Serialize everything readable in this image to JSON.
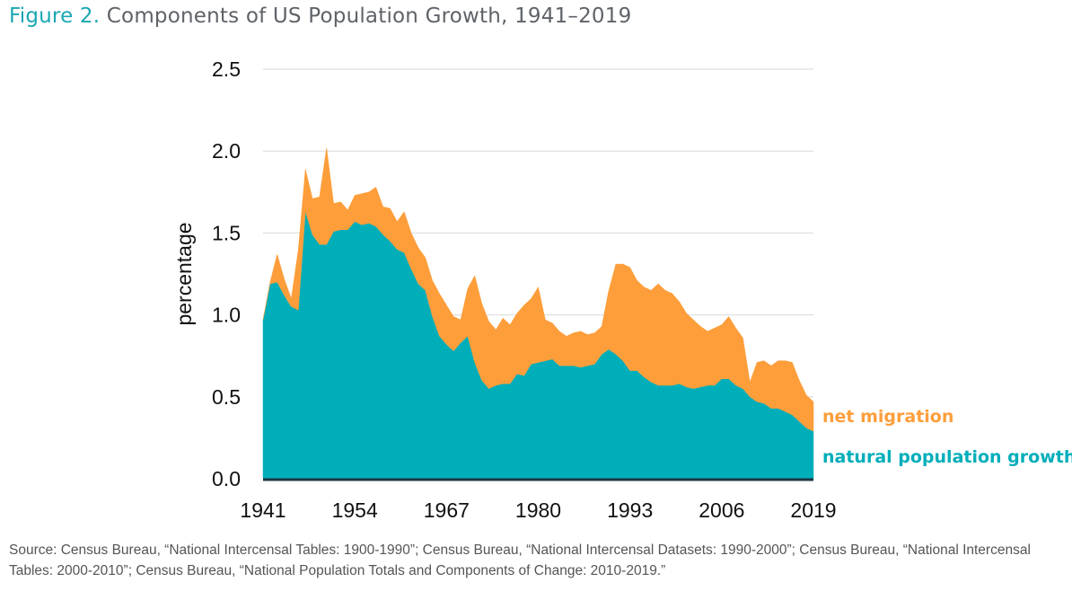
{
  "title": {
    "figure": "Figure 2.",
    "text": "Components of US Population Growth, 1941–2019"
  },
  "source": "Source: Census Bureau, “National Intercensal Tables: 1900-1990”; Census Bureau, “National Intercensal Datasets: 1990-2000”; Census Bureau, “National Intercensal Tables: 2000-2010”; Census Bureau, “National Population Totals and Components of Change: 2010-2019.”",
  "chart_data": {
    "type": "area",
    "stacked": true,
    "title": "Components of US Population Growth, 1941–2019",
    "xlabel": "",
    "ylabel": "percentage",
    "xlim": [
      1941,
      2019
    ],
    "ylim": [
      0,
      2.5
    ],
    "yticks": [
      "0.0",
      "0.5",
      "1.0",
      "1.5",
      "2.0",
      "2.5"
    ],
    "xticks": [
      "1941",
      "1954",
      "1967",
      "1980",
      "1993",
      "2006",
      "2019"
    ],
    "grid": true,
    "legend": "right (inline labels)",
    "x_start": 1941,
    "series": [
      {
        "name": "natural population growth",
        "color": "#00aeba",
        "values": [
          0.97,
          1.19,
          1.2,
          1.12,
          1.05,
          1.03,
          1.63,
          1.49,
          1.43,
          1.43,
          1.51,
          1.52,
          1.52,
          1.57,
          1.55,
          1.56,
          1.54,
          1.49,
          1.45,
          1.4,
          1.38,
          1.28,
          1.19,
          1.15,
          0.99,
          0.87,
          0.82,
          0.78,
          0.83,
          0.87,
          0.71,
          0.6,
          0.55,
          0.57,
          0.58,
          0.58,
          0.64,
          0.63,
          0.7,
          0.71,
          0.72,
          0.73,
          0.69,
          0.69,
          0.69,
          0.68,
          0.69,
          0.7,
          0.76,
          0.79,
          0.76,
          0.72,
          0.66,
          0.66,
          0.62,
          0.59,
          0.57,
          0.57,
          0.57,
          0.58,
          0.56,
          0.55,
          0.56,
          0.57,
          0.57,
          0.61,
          0.61,
          0.57,
          0.55,
          0.5,
          0.47,
          0.46,
          0.43,
          0.43,
          0.41,
          0.39,
          0.35,
          0.31,
          0.29
        ]
      },
      {
        "name": "net migration",
        "color": "#fd9e3b",
        "values": [
          0.0,
          0.01,
          0.17,
          0.1,
          0.05,
          0.37,
          0.26,
          0.22,
          0.29,
          0.59,
          0.17,
          0.17,
          0.12,
          0.16,
          0.19,
          0.19,
          0.24,
          0.17,
          0.2,
          0.17,
          0.25,
          0.22,
          0.22,
          0.2,
          0.22,
          0.26,
          0.24,
          0.21,
          0.14,
          0.29,
          0.53,
          0.47,
          0.41,
          0.34,
          0.4,
          0.36,
          0.37,
          0.43,
          0.4,
          0.46,
          0.25,
          0.22,
          0.21,
          0.18,
          0.2,
          0.22,
          0.19,
          0.19,
          0.17,
          0.36,
          0.55,
          0.59,
          0.63,
          0.55,
          0.55,
          0.56,
          0.62,
          0.58,
          0.56,
          0.5,
          0.45,
          0.42,
          0.37,
          0.33,
          0.35,
          0.33,
          0.38,
          0.35,
          0.31,
          0.09,
          0.24,
          0.26,
          0.26,
          0.29,
          0.31,
          0.32,
          0.25,
          0.2,
          0.18
        ]
      }
    ]
  }
}
